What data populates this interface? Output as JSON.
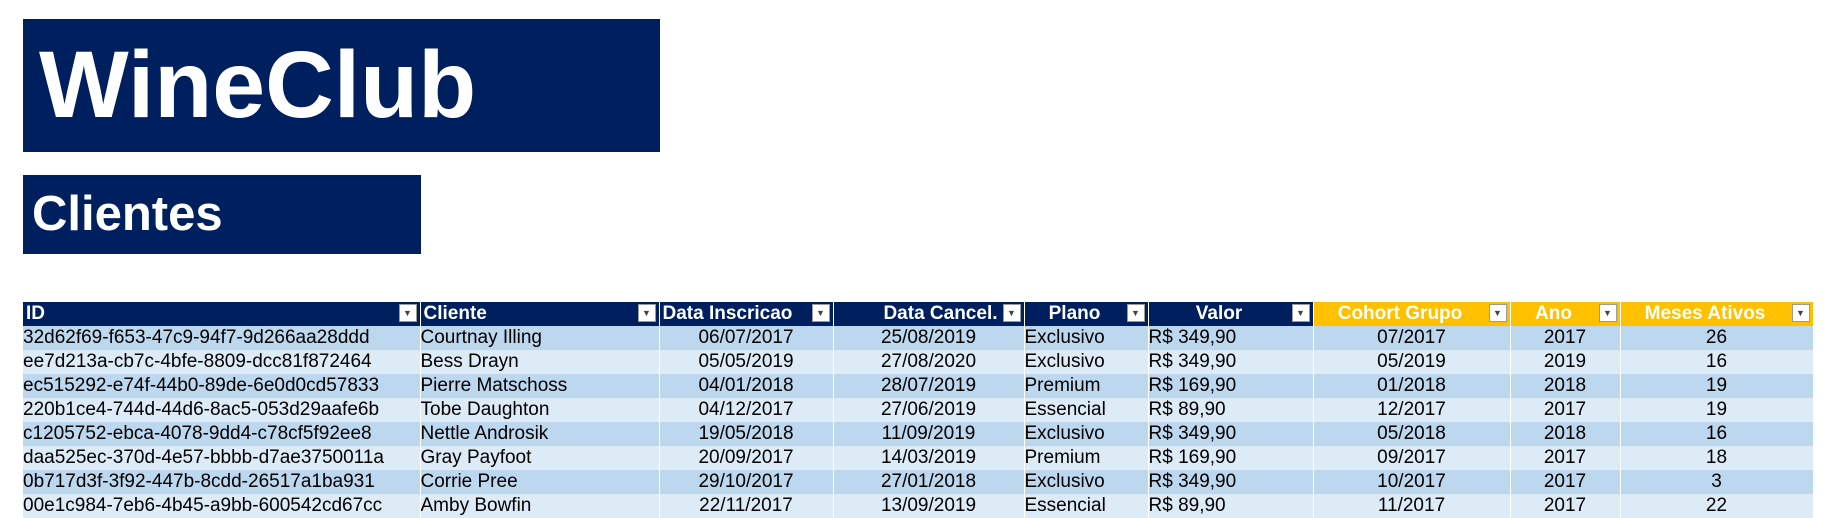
{
  "header": {
    "app_title": "WineClub",
    "section_title": "Clientes"
  },
  "colors": {
    "header_navy": "#001f5f",
    "header_gold": "#ffc000",
    "row_band_dark": "#bdd7ee",
    "row_band_light": "#ddebf7"
  },
  "table": {
    "filter_icon": "dropdown-arrow-icon",
    "columns": [
      {
        "label": "ID"
      },
      {
        "label": "Cliente"
      },
      {
        "label": "Data Inscricao"
      },
      {
        "label": "Data Cancel."
      },
      {
        "label": "Plano"
      },
      {
        "label": "Valor"
      },
      {
        "label": "Cohort Grupo"
      },
      {
        "label": "Ano"
      },
      {
        "label": "Meses Ativos"
      }
    ],
    "rows": [
      {
        "id": "32d62f69-f653-47c9-94f7-9d266aa28ddd",
        "cliente": "Courtnay Illing",
        "data_inscricao": "06/07/2017",
        "data_cancel": "25/08/2019",
        "plano": "Exclusivo",
        "valor": "R$ 349,90",
        "cohort": "07/2017",
        "ano": "2017",
        "meses": "26"
      },
      {
        "id": "ee7d213a-cb7c-4bfe-8809-dcc81f872464",
        "cliente": "Bess Drayn",
        "data_inscricao": "05/05/2019",
        "data_cancel": "27/08/2020",
        "plano": "Exclusivo",
        "valor": "R$ 349,90",
        "cohort": "05/2019",
        "ano": "2019",
        "meses": "16"
      },
      {
        "id": "ec515292-e74f-44b0-89de-6e0d0cd57833",
        "cliente": "Pierre Matschoss",
        "data_inscricao": "04/01/2018",
        "data_cancel": "28/07/2019",
        "plano": "Premium",
        "valor": "R$ 169,90",
        "cohort": "01/2018",
        "ano": "2018",
        "meses": "19"
      },
      {
        "id": "220b1ce4-744d-44d6-8ac5-053d29aafe6b",
        "cliente": "Tobe Daughton",
        "data_inscricao": "04/12/2017",
        "data_cancel": "27/06/2019",
        "plano": "Essencial",
        "valor": "R$ 89,90",
        "cohort": "12/2017",
        "ano": "2017",
        "meses": "19"
      },
      {
        "id": "c1205752-ebca-4078-9dd4-c78cf5f92ee8",
        "cliente": "Nettle Androsik",
        "data_inscricao": "19/05/2018",
        "data_cancel": "11/09/2019",
        "plano": "Exclusivo",
        "valor": "R$ 349,90",
        "cohort": "05/2018",
        "ano": "2018",
        "meses": "16"
      },
      {
        "id": "daa525ec-370d-4e57-bbbb-d7ae3750011a",
        "cliente": "Gray Payfoot",
        "data_inscricao": "20/09/2017",
        "data_cancel": "14/03/2019",
        "plano": "Premium",
        "valor": "R$ 169,90",
        "cohort": "09/2017",
        "ano": "2017",
        "meses": "18"
      },
      {
        "id": "0b717d3f-3f92-447b-8cdd-26517a1ba931",
        "cliente": "Corrie Pree",
        "data_inscricao": "29/10/2017",
        "data_cancel": "27/01/2018",
        "plano": "Exclusivo",
        "valor": "R$ 349,90",
        "cohort": "10/2017",
        "ano": "2017",
        "meses": "3"
      },
      {
        "id": "00e1c984-7eb6-4b45-a9bb-600542cd67cc",
        "cliente": "Amby Bowfin",
        "data_inscricao": "22/11/2017",
        "data_cancel": "13/09/2019",
        "plano": "Essencial",
        "valor": "R$ 89,90",
        "cohort": "11/2017",
        "ano": "2017",
        "meses": "22"
      }
    ]
  }
}
